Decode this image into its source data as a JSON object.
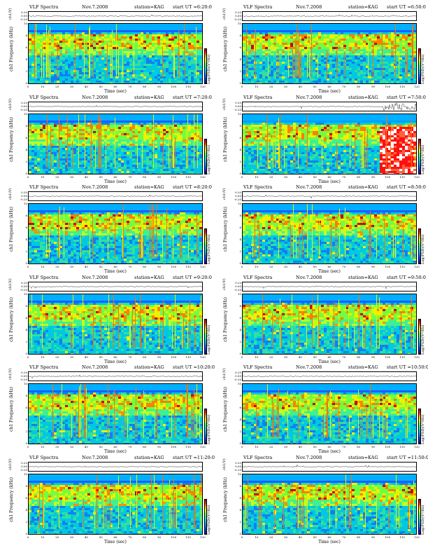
{
  "chart_data": [
    {
      "type": "heatmap",
      "title": "VLF Spectra",
      "date": "Nov.7.2008",
      "station": "station=KAG",
      "start_ut": "start UT =6:20:0",
      "ch_label": "ch1(V)",
      "ch_yticks": [
        "0.20",
        "0.00",
        "-0.20"
      ],
      "ylabel": "ch1\nFrequency (kHz)",
      "yticks": [
        "10",
        "8",
        "6",
        "4",
        "2",
        "0"
      ],
      "xlabel": "Time (sec)",
      "xticks": [
        "0",
        "10",
        "20",
        "30",
        "40",
        "50",
        "60",
        "70",
        "80",
        "90",
        "100",
        "110",
        "120"
      ],
      "cbar_label": "Log(PSD)(V²/Hz)",
      "xlim": [
        0,
        120
      ],
      "ylim": [
        0,
        10
      ],
      "burst": false
    },
    {
      "type": "heatmap",
      "title": "VLF Spectra",
      "date": "Nov.7.2008",
      "station": "station=KAG",
      "start_ut": "start UT =6:50:0",
      "ch_label": "ch1(V)",
      "ch_yticks": [
        "0.20",
        "0.00",
        "-0.20"
      ],
      "ylabel": "ch1\nFrequency (kHz)",
      "yticks": [
        "10",
        "8",
        "6",
        "4",
        "2",
        "0"
      ],
      "xlabel": "Time (sec)",
      "xticks": [
        "0",
        "10",
        "20",
        "30",
        "40",
        "50",
        "60",
        "70",
        "80",
        "90",
        "100",
        "110",
        "120"
      ],
      "cbar_label": "Log(PSD)(V²/Hz)",
      "xlim": [
        0,
        120
      ],
      "ylim": [
        0,
        10
      ],
      "burst": false
    },
    {
      "type": "heatmap",
      "title": "VLF Spectra",
      "date": "Nov.7.2008",
      "station": "station=KAG",
      "start_ut": "start UT =7:20:0",
      "ch_label": "ch1(V)",
      "ch_yticks": [
        "0.20",
        "0.00",
        "-0.20"
      ],
      "ylabel": "ch1\nFrequency (kHz)",
      "yticks": [
        "10",
        "8",
        "6",
        "4",
        "2",
        "0"
      ],
      "xlabel": "Time (sec)",
      "xticks": [
        "0",
        "10",
        "20",
        "30",
        "40",
        "50",
        "60",
        "70",
        "80",
        "90",
        "100",
        "110",
        "120"
      ],
      "cbar_label": "Log(PSD)(V²/Hz)",
      "xlim": [
        0,
        120
      ],
      "ylim": [
        0,
        10
      ],
      "burst": false
    },
    {
      "type": "heatmap",
      "title": "VLF Spectra",
      "date": "Nov.7.2008",
      "station": "station=KAG",
      "start_ut": "start UT =7:50:0",
      "ch_label": "ch1(V)",
      "ch_yticks": [
        "0.20",
        "0.00",
        "-0.20"
      ],
      "ylabel": "ch1\nFrequency (kHz)",
      "yticks": [
        "10",
        "8",
        "6",
        "4",
        "2",
        "0"
      ],
      "xlabel": "Time (sec)",
      "xticks": [
        "0",
        "10",
        "20",
        "30",
        "40",
        "50",
        "60",
        "70",
        "80",
        "90",
        "100",
        "110",
        "120"
      ],
      "cbar_label": "Log(PSD)(V²/Hz)",
      "xlim": [
        0,
        120
      ],
      "ylim": [
        0,
        10
      ],
      "burst": true
    },
    {
      "type": "heatmap",
      "title": "VLF Spectra",
      "date": "Nov.7.2008",
      "station": "station=KAG",
      "start_ut": "start UT =8:20:0",
      "ch_label": "ch1(V)",
      "ch_yticks": [
        "0.20",
        "0.00",
        "-0.20"
      ],
      "ylabel": "ch1\nFrequency (kHz)",
      "yticks": [
        "10",
        "8",
        "6",
        "4",
        "2",
        "0"
      ],
      "xlabel": "Time (sec)",
      "xticks": [
        "0",
        "10",
        "20",
        "30",
        "40",
        "50",
        "60",
        "70",
        "80",
        "90",
        "100",
        "110",
        "120"
      ],
      "cbar_label": "Log(PSD)(V²/Hz)",
      "xlim": [
        0,
        120
      ],
      "ylim": [
        0,
        10
      ],
      "burst": false
    },
    {
      "type": "heatmap",
      "title": "VLF Spectra",
      "date": "Nov.7.2008",
      "station": "station=KAG",
      "start_ut": "start UT =8:50:0",
      "ch_label": "ch1(V)",
      "ch_yticks": [
        "0.20",
        "0.00",
        "-0.20"
      ],
      "ylabel": "ch1\nFrequency (kHz)",
      "yticks": [
        "10",
        "8",
        "6",
        "4",
        "2",
        "0"
      ],
      "xlabel": "Time (sec)",
      "xticks": [
        "0",
        "10",
        "20",
        "30",
        "40",
        "50",
        "60",
        "70",
        "80",
        "90",
        "100",
        "110",
        "120"
      ],
      "cbar_label": "Log(PSD)(V²/Hz)",
      "xlim": [
        0,
        120
      ],
      "ylim": [
        0,
        10
      ],
      "burst": false
    },
    {
      "type": "heatmap",
      "title": "VLF Spectra",
      "date": "Nov.7.2008",
      "station": "station=KAG",
      "start_ut": "start UT =9:20:0",
      "ch_label": "ch1(V)",
      "ch_yticks": [
        "0.20",
        "0.00",
        "-0.20"
      ],
      "ylabel": "ch1\nFrequency (kHz)",
      "yticks": [
        "10",
        "8",
        "6",
        "4",
        "2",
        "0"
      ],
      "xlabel": "Time (sec)",
      "xticks": [
        "0",
        "10",
        "20",
        "30",
        "40",
        "50",
        "60",
        "70",
        "80",
        "90",
        "100",
        "110",
        "120"
      ],
      "cbar_label": "Log(PSD)(V²/Hz)",
      "xlim": [
        0,
        120
      ],
      "ylim": [
        0,
        10
      ],
      "burst": false
    },
    {
      "type": "heatmap",
      "title": "VLF Spectra",
      "date": "Nov.7.2008",
      "station": "station=KAG",
      "start_ut": "start UT =9:50:0",
      "ch_label": "ch1(V)",
      "ch_yticks": [
        "0.20",
        "0.00",
        "-0.20"
      ],
      "ylabel": "ch1\nFrequency (kHz)",
      "yticks": [
        "10",
        "8",
        "6",
        "4",
        "2",
        "0"
      ],
      "xlabel": "Time (sec)",
      "xticks": [
        "0",
        "10",
        "20",
        "30",
        "40",
        "50",
        "60",
        "70",
        "80",
        "90",
        "100",
        "110",
        "120"
      ],
      "cbar_label": "Log(PSD)(V²/Hz)",
      "xlim": [
        0,
        120
      ],
      "ylim": [
        0,
        10
      ],
      "burst": false
    },
    {
      "type": "heatmap",
      "title": "VLF Spectra",
      "date": "Nov.7.2008",
      "station": "station=KAG",
      "start_ut": "start UT =10:20:0",
      "ch_label": "ch1(V)",
      "ch_yticks": [
        "0.20",
        "0.00",
        "-0.20"
      ],
      "ylabel": "ch1\nFrequency (kHz)",
      "yticks": [
        "10",
        "8",
        "6",
        "4",
        "2",
        "0"
      ],
      "xlabel": "Time (sec)",
      "xticks": [
        "0",
        "10",
        "20",
        "30",
        "40",
        "50",
        "60",
        "70",
        "80",
        "90",
        "100",
        "110",
        "120"
      ],
      "cbar_label": "Log(PSD)(V²/Hz)",
      "xlim": [
        0,
        120
      ],
      "ylim": [
        0,
        10
      ],
      "burst": false
    },
    {
      "type": "heatmap",
      "title": "VLF Spectra",
      "date": "Nov.7.2008",
      "station": "station=KAG",
      "start_ut": "start UT =10:50:0",
      "ch_label": "ch1(V)",
      "ch_yticks": [
        "0.20",
        "0.00",
        "-0.20"
      ],
      "ylabel": "ch1\nFrequency (kHz)",
      "yticks": [
        "10",
        "8",
        "6",
        "4",
        "2",
        "0"
      ],
      "xlabel": "Time (sec)",
      "xticks": [
        "0",
        "10",
        "20",
        "30",
        "40",
        "50",
        "60",
        "70",
        "80",
        "90",
        "100",
        "110",
        "120"
      ],
      "cbar_label": "Log(PSD)(V²/Hz)",
      "xlim": [
        0,
        120
      ],
      "ylim": [
        0,
        10
      ],
      "burst": false
    },
    {
      "type": "heatmap",
      "title": "VLF Spectra",
      "date": "Nov.7.2008",
      "station": "station=KAG",
      "start_ut": "start UT =11:20:0",
      "ch_label": "ch1(V)",
      "ch_yticks": [
        "0.20",
        "0.00",
        "-0.20"
      ],
      "ylabel": "ch1\nFrequency (kHz)",
      "yticks": [
        "10",
        "8",
        "6",
        "4",
        "2",
        "0"
      ],
      "xlabel": "Time (sec)",
      "xticks": [
        "0",
        "10",
        "20",
        "30",
        "40",
        "50",
        "60",
        "70",
        "80",
        "90",
        "100",
        "110",
        "120"
      ],
      "cbar_label": "Log(PSD)(V²/Hz)",
      "xlim": [
        0,
        120
      ],
      "ylim": [
        0,
        10
      ],
      "burst": false
    },
    {
      "type": "heatmap",
      "title": "VLF Spectra",
      "date": "Nov.7.2008",
      "station": "station=KAG",
      "start_ut": "start UT =11:50:0",
      "ch_label": "ch1(V)",
      "ch_yticks": [
        "0.20",
        "0.00",
        "-0.20"
      ],
      "ylabel": "ch1\nFrequency (kHz)",
      "yticks": [
        "10",
        "8",
        "6",
        "4",
        "2",
        "0"
      ],
      "xlabel": "Time (sec)",
      "xticks": [
        "0",
        "10",
        "20",
        "30",
        "40",
        "50",
        "60",
        "70",
        "80",
        "90",
        "100",
        "110",
        "120"
      ],
      "cbar_label": "Log(PSD)(V²/Hz)",
      "xlim": [
        0,
        120
      ],
      "ylim": [
        0,
        10
      ],
      "burst": false
    }
  ],
  "colors": {
    "low": "#1a00a0",
    "mid": "#00e0d0",
    "high": "#ff2000"
  }
}
